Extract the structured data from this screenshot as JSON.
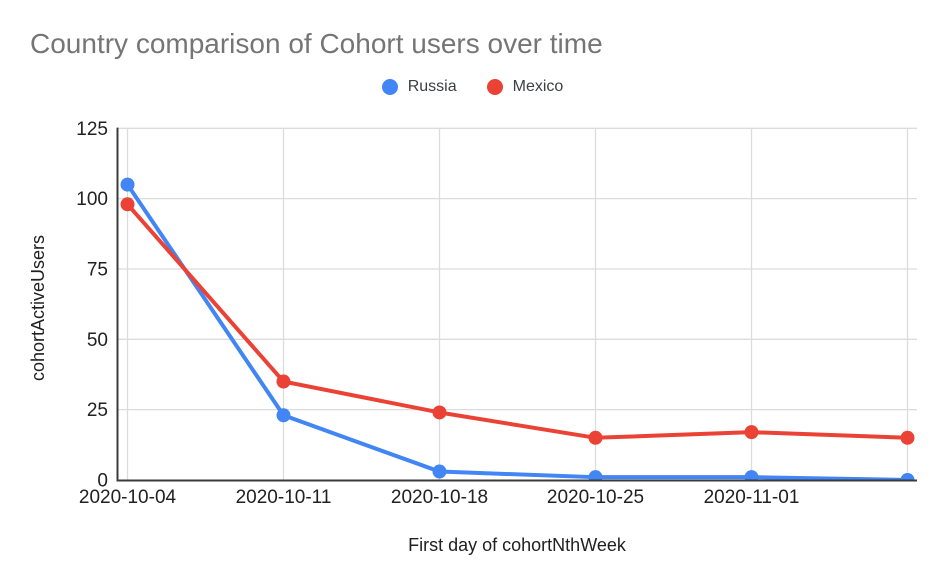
{
  "chart_data": {
    "type": "line",
    "title": "Country comparison of Cohort users over time",
    "xlabel": "First day of cohortNthWeek",
    "ylabel": "cohortActiveUsers",
    "categories": [
      "2020-10-04",
      "2020-10-11",
      "2020-10-18",
      "2020-10-25",
      "2020-11-01",
      ""
    ],
    "series": [
      {
        "name": "Russia",
        "color": "#4285F4",
        "values": [
          105,
          23,
          3,
          1,
          1,
          0
        ]
      },
      {
        "name": "Mexico",
        "color": "#EA4335",
        "values": [
          98,
          35,
          24,
          15,
          17,
          15
        ]
      }
    ],
    "ylim": [
      0,
      125
    ],
    "yticks": [
      0,
      25,
      50,
      75,
      100,
      125
    ],
    "grid": true,
    "legend_position": "top"
  },
  "palette": {
    "title_text": "#757575",
    "tick_text": "#212121",
    "axis_title_text": "#212121",
    "legend_text": "#3c4043",
    "gridline": "#dadce0",
    "axis_line": "#3b3b3b",
    "background": "#ffffff"
  }
}
